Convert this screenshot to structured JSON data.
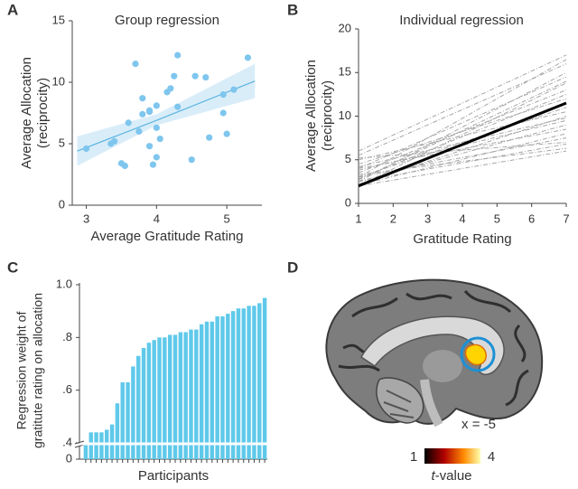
{
  "chart_data": [
    {
      "panel": "A",
      "type": "scatter",
      "title": "Group regression",
      "x_label": "Average Gratitude Rating",
      "y_label": [
        "Average Allocation",
        "(reciprocity)"
      ],
      "x": [
        3.0,
        3.35,
        3.4,
        3.5,
        3.55,
        3.6,
        3.7,
        3.75,
        3.8,
        3.8,
        3.9,
        3.9,
        3.95,
        4.0,
        4.0,
        4.0,
        3.9,
        4.05,
        4.15,
        4.2,
        4.25,
        4.3,
        4.3,
        4.5,
        4.55,
        4.7,
        4.75,
        4.95,
        4.95,
        5.0,
        5.1,
        5.3
      ],
      "values": [
        4.6,
        5.0,
        5.2,
        3.4,
        3.2,
        6.7,
        11.5,
        6.0,
        7.4,
        8.7,
        4.8,
        7.7,
        3.3,
        3.9,
        6.3,
        8.1,
        7.6,
        5.4,
        9.2,
        9.5,
        10.5,
        12.2,
        8.0,
        3.7,
        10.5,
        10.4,
        5.5,
        7.5,
        9.0,
        5.8,
        9.4,
        12.0
      ],
      "color": "#7fc6ee",
      "fit": {
        "x": [
          2.87,
          4.0,
          5.4
        ],
        "y": [
          4.4,
          6.9,
          10.1
        ],
        "lower": [
          3.2,
          6.5,
          8.7
        ],
        "upper": [
          5.6,
          7.4,
          11.5
        ],
        "color": "#5bb4e0",
        "band_color": "#cfe9f8"
      },
      "xlim": [
        2.8,
        5.5
      ],
      "xticks": [
        3,
        4,
        5
      ],
      "ylim": [
        0,
        15
      ],
      "yticks": [
        0,
        5,
        10,
        15
      ]
    },
    {
      "panel": "B",
      "type": "line",
      "title": "Individual regression",
      "x_label": "Gratitude Rating",
      "y_label": [
        "Average Allocation",
        "(reciprocity)"
      ],
      "x": [
        1,
        7
      ],
      "color": "#a6a6a6",
      "series": [
        {
          "values": [
            6,
            17
          ]
        },
        {
          "values": [
            5.5,
            16
          ]
        },
        {
          "values": [
            3,
            16.5
          ]
        },
        {
          "values": [
            2.5,
            15
          ]
        },
        {
          "values": [
            4,
            14.5
          ]
        },
        {
          "values": [
            2,
            13.8
          ]
        },
        {
          "values": [
            3.5,
            13
          ]
        },
        {
          "values": [
            2.8,
            12.5
          ]
        },
        {
          "values": [
            4.5,
            12
          ]
        },
        {
          "values": [
            2,
            11.5
          ]
        },
        {
          "values": [
            3,
            11
          ]
        },
        {
          "values": [
            5,
            10.5
          ]
        },
        {
          "values": [
            2.2,
            10
          ]
        },
        {
          "values": [
            3.8,
            9.5
          ]
        },
        {
          "values": [
            2.5,
            9
          ]
        },
        {
          "values": [
            4,
            8.5
          ]
        },
        {
          "values": [
            2.1,
            8
          ]
        },
        {
          "values": [
            3,
            7.5
          ]
        },
        {
          "values": [
            5.2,
            7
          ]
        },
        {
          "values": [
            2.5,
            6.8
          ]
        },
        {
          "values": [
            3.3,
            6.3
          ]
        },
        {
          "values": [
            2,
            6
          ]
        },
        {
          "values": [
            4.2,
            9.8
          ]
        },
        {
          "values": [
            2.7,
            14
          ]
        }
      ],
      "group_fit": {
        "values": [
          2,
          11.5
        ],
        "color": "#000000"
      },
      "xlim": [
        1,
        7
      ],
      "xticks": [
        1,
        2,
        3,
        4,
        5,
        6,
        7
      ],
      "ylim": [
        0,
        20
      ],
      "yticks": [
        0,
        5,
        10,
        15,
        20
      ]
    },
    {
      "panel": "C",
      "type": "bar",
      "x_label": "Participants",
      "y_label": [
        "Regression weight of",
        "gratitute rating on allocation"
      ],
      "values": [
        0.38,
        0.44,
        0.44,
        0.44,
        0.45,
        0.47,
        0.55,
        0.63,
        0.63,
        0.69,
        0.73,
        0.76,
        0.78,
        0.79,
        0.8,
        0.8,
        0.81,
        0.81,
        0.82,
        0.82,
        0.83,
        0.83,
        0.85,
        0.86,
        0.86,
        0.88,
        0.88,
        0.89,
        0.9,
        0.91,
        0.91,
        0.92,
        0.92,
        0.93,
        0.95
      ],
      "color": "#5fc9ea",
      "y_break": true,
      "ylim": [
        0,
        1.0
      ],
      "yticks": [
        0,
        {
          "value": 0.4,
          "label": ".4"
        },
        {
          "value": 0.6,
          "label": ".6"
        },
        {
          "value": 0.8,
          "label": ".8"
        },
        {
          "value": 1.0,
          "label": "1.0"
        }
      ]
    }
  ],
  "panel_d": {
    "panel": "D",
    "slice": "x = -5",
    "colorbar": {
      "min": 1,
      "max": 4,
      "label": [
        "t",
        "-value"
      ]
    }
  }
}
